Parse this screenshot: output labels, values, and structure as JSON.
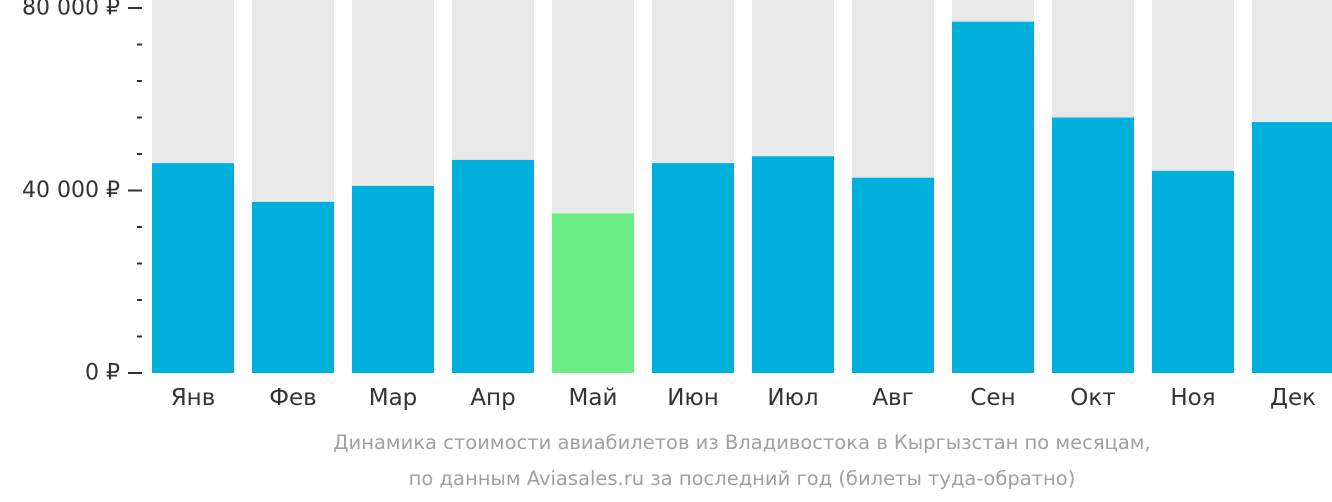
{
  "chart_data": {
    "type": "bar",
    "categories": [
      "Янв",
      "Фев",
      "Мар",
      "Апр",
      "Май",
      "Июн",
      "Июл",
      "Авг",
      "Сен",
      "Окт",
      "Ноя",
      "Дек"
    ],
    "values": [
      46000,
      37500,
      41000,
      46700,
      35000,
      46000,
      47500,
      42800,
      77000,
      56000,
      44300,
      55000
    ],
    "ylim": [
      0,
      80000
    ],
    "yticks": [
      {
        "value": 0,
        "label": "0 ₽"
      },
      {
        "value": 40000,
        "label": "40 000 ₽"
      },
      {
        "value": 80000,
        "label": "80 000 ₽"
      }
    ],
    "minor_tick_step": 8000,
    "highlight_index": 4,
    "grid": false,
    "legend": "none",
    "colors": {
      "bar": "#00b0dc",
      "highlight": "#6bef84",
      "track": "#e8e8e8",
      "axis": "#333333"
    }
  },
  "caption": {
    "line1": "Динамика стоимости авиабилетов из Владивостока в Кыргызстан по месяцам,",
    "line2": "по данным Aviasales.ru за последний год (билеты туда-обратно)"
  }
}
